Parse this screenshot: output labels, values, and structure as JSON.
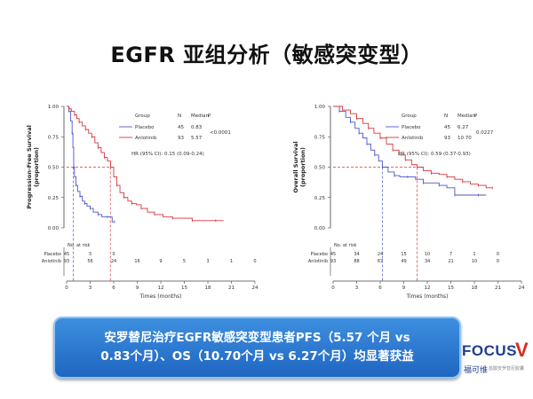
{
  "title": "EGFR 亚组分析（敏感突变型）",
  "banner": {
    "line1": "安罗替尼治疗EGFR敏感突变型患者PFS（5.57 个月 vs",
    "line2": "0.83个月）、OS（10.70个月 vs 6.27个月）均显著获益"
  },
  "logo": {
    "text": "FOCUS",
    "v": "V",
    "cn": "福可维",
    "sub": "盐酸安罗替尼胶囊"
  },
  "colors": {
    "placebo": "#4b55c8",
    "anlotinib": "#d9363b",
    "banner": "#2a75d3",
    "logo": "#1f3f8a"
  },
  "chart_data": [
    {
      "type": "line",
      "subtype": "kaplan-meier",
      "ylabel": "Progression-Free Survival\n(proportion)",
      "xlabel": "Times (months)",
      "ylim": [
        0,
        1
      ],
      "xlim": [
        0,
        24
      ],
      "y_ticks": [
        "0.00",
        "0.25",
        "0.50",
        "0.75",
        "1.00"
      ],
      "x_ticks": [
        "0",
        "3",
        "6",
        "9",
        "12",
        "15",
        "18",
        "21",
        "24"
      ],
      "legend": {
        "header": [
          "Group",
          "N",
          "Median",
          "P"
        ],
        "rows": [
          {
            "group": "Placebo",
            "n": "45",
            "median": "0.83"
          },
          {
            "group": "Anlotinib",
            "n": "93",
            "median": "5.57"
          }
        ],
        "p": "<0.0001",
        "hr": "HR (95% CI): 0.15 (0.09-0.24)"
      },
      "risk_table": {
        "label": "No. at risk",
        "rows": [
          {
            "name": "Placebo",
            "values": [
              "45",
              "3",
              "0",
              "",
              "",
              "",
              "",
              "",
              ""
            ]
          },
          {
            "name": "Anlotinib",
            "values": [
              "93",
              "56",
              "24",
              "16",
              "9",
              "5",
              "3",
              "1",
              "0"
            ]
          }
        ]
      },
      "series": [
        {
          "name": "Placebo",
          "x": [
            0,
            0.3,
            0.5,
            0.7,
            0.8,
            0.9,
            1.0,
            1.2,
            1.4,
            1.7,
            2.0,
            2.3,
            2.6,
            3.0,
            3.4,
            4.0,
            4.5,
            5.2,
            5.8,
            6.1
          ],
          "y": [
            1.0,
            0.96,
            0.88,
            0.78,
            0.66,
            0.5,
            0.42,
            0.35,
            0.3,
            0.26,
            0.22,
            0.2,
            0.18,
            0.16,
            0.13,
            0.11,
            0.09,
            0.09,
            0.05,
            0.05
          ]
        },
        {
          "name": "Anlotinib",
          "x": [
            0,
            0.3,
            0.6,
            1.0,
            1.3,
            1.6,
            2.0,
            2.4,
            2.8,
            3.2,
            3.6,
            4.0,
            4.4,
            4.8,
            5.2,
            5.6,
            6.0,
            6.4,
            6.8,
            7.3,
            7.8,
            8.3,
            8.9,
            9.5,
            10.3,
            11.2,
            12.3,
            13.5,
            14.8,
            16.0,
            17.5,
            19.0,
            20.0
          ],
          "y": [
            1.0,
            0.98,
            0.96,
            0.93,
            0.9,
            0.87,
            0.84,
            0.81,
            0.78,
            0.75,
            0.7,
            0.66,
            0.62,
            0.58,
            0.55,
            0.5,
            0.42,
            0.35,
            0.29,
            0.25,
            0.22,
            0.2,
            0.19,
            0.16,
            0.13,
            0.11,
            0.09,
            0.08,
            0.08,
            0.06,
            0.06,
            0.06,
            0.06
          ]
        }
      ],
      "median_lines": [
        {
          "x": 0.83,
          "color": "placebo"
        },
        {
          "x": 5.57,
          "color": "anlotinib"
        }
      ]
    },
    {
      "type": "line",
      "subtype": "kaplan-meier",
      "ylabel": "Overall Survival\n(proportion)",
      "xlabel": "Times (months)",
      "ylim": [
        0,
        1
      ],
      "xlim": [
        0,
        24
      ],
      "y_ticks": [
        "0.00",
        "0.25",
        "0.50",
        "0.75",
        "1.00"
      ],
      "x_ticks": [
        "0",
        "3",
        "6",
        "9",
        "12",
        "15",
        "18",
        "21",
        "24"
      ],
      "legend": {
        "header": [
          "Group",
          "N",
          "Median",
          "P"
        ],
        "rows": [
          {
            "group": "Placebo",
            "n": "45",
            "median": "6.27"
          },
          {
            "group": "Anlotinib",
            "n": "93",
            "median": "10.70"
          }
        ],
        "p": "0.0227",
        "hr": "HR (95% CI): 0.59 (0.37-0.93)"
      },
      "risk_table": {
        "label": "No. at risk",
        "rows": [
          {
            "name": "Placebo",
            "values": [
              "45",
              "34",
              "24",
              "15",
              "10",
              "7",
              "1",
              "0",
              ""
            ]
          },
          {
            "name": "Anlotinib",
            "values": [
              "93",
              "88",
              "67",
              "49",
              "34",
              "21",
              "10",
              "0",
              ""
            ]
          }
        ]
      },
      "series": [
        {
          "name": "Placebo",
          "x": [
            0,
            0.8,
            1.6,
            2.2,
            2.8,
            3.3,
            3.8,
            4.3,
            4.8,
            5.3,
            5.8,
            6.27,
            7.0,
            7.8,
            8.5,
            9.5,
            10.5,
            11.5,
            12.5,
            13.5,
            14.5,
            15.5,
            17.0,
            18.5,
            19.5
          ],
          "y": [
            1.0,
            0.96,
            0.91,
            0.87,
            0.82,
            0.78,
            0.74,
            0.69,
            0.64,
            0.6,
            0.55,
            0.5,
            0.46,
            0.43,
            0.42,
            0.42,
            0.4,
            0.37,
            0.37,
            0.35,
            0.33,
            0.27,
            0.27,
            0.27,
            0.27
          ]
        },
        {
          "name": "Anlotinib",
          "x": [
            0,
            1.2,
            2.2,
            3.0,
            3.8,
            4.5,
            5.2,
            6.0,
            6.8,
            7.6,
            8.4,
            9.2,
            10.0,
            10.7,
            11.5,
            12.5,
            13.5,
            14.5,
            15.5,
            16.5,
            17.5,
            18.5,
            19.5,
            20.3
          ],
          "y": [
            1.0,
            0.97,
            0.94,
            0.9,
            0.86,
            0.82,
            0.78,
            0.74,
            0.69,
            0.64,
            0.6,
            0.56,
            0.52,
            0.5,
            0.47,
            0.45,
            0.44,
            0.42,
            0.4,
            0.38,
            0.36,
            0.35,
            0.33,
            0.33
          ]
        }
      ],
      "median_lines": [
        {
          "x": 6.27,
          "color": "placebo"
        },
        {
          "x": 10.7,
          "color": "anlotinib"
        }
      ]
    }
  ]
}
